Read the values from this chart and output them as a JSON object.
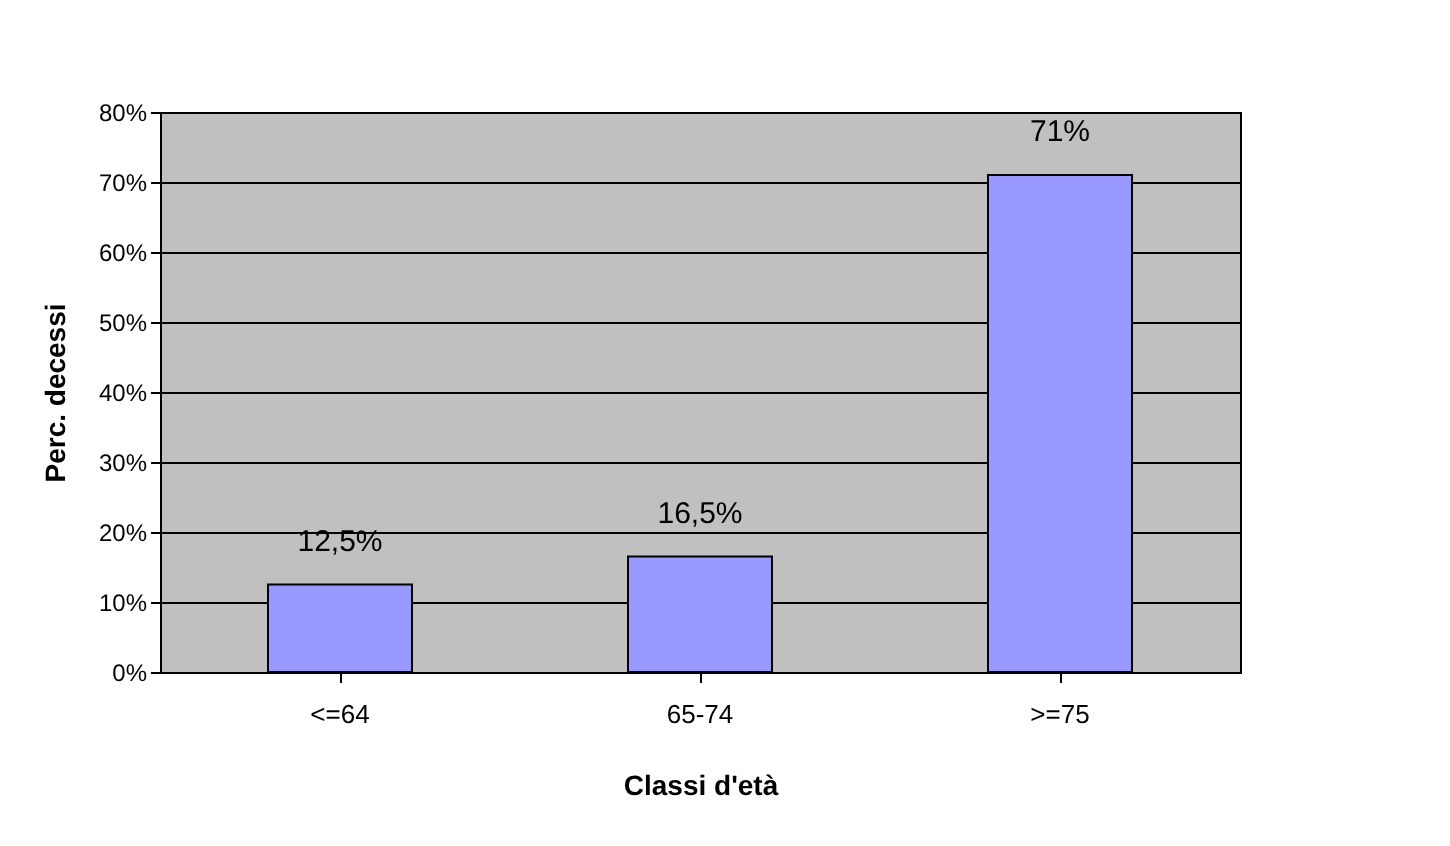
{
  "chart_data": {
    "type": "bar",
    "xlabel": "Classi d'età",
    "ylabel": "Perc. decessi",
    "categories": [
      "<=64",
      "65-74",
      ">=75"
    ],
    "values": [
      12.5,
      16.5,
      71
    ],
    "value_labels": [
      "12,5%",
      "16,5%",
      "71%"
    ],
    "color": "#9999ff",
    "ylim": [
      0,
      80
    ],
    "yticks": [
      {
        "value": 0,
        "label": "0%"
      },
      {
        "value": 10,
        "label": "10%"
      },
      {
        "value": 20,
        "label": "20%"
      },
      {
        "value": 30,
        "label": "30%"
      },
      {
        "value": 40,
        "label": "40%"
      },
      {
        "value": 50,
        "label": "50%"
      },
      {
        "value": 60,
        "label": "60%"
      },
      {
        "value": 70,
        "label": "70%"
      },
      {
        "value": 80,
        "label": "80%"
      }
    ],
    "grid": "y"
  }
}
